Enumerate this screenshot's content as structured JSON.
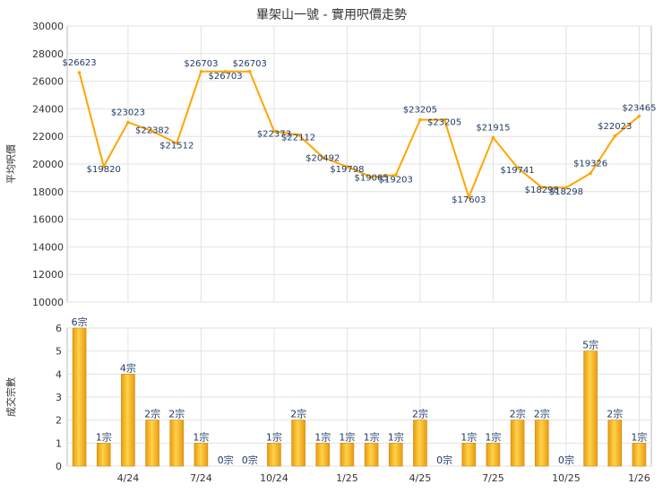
{
  "title": "畢架山一號 - 實用呎價走勢",
  "chart_data": [
    {
      "type": "line",
      "ylabel": "平均呎價",
      "ylim": [
        10000,
        30000
      ],
      "yticks": [
        10000,
        12000,
        14000,
        16000,
        18000,
        20000,
        22000,
        24000,
        26000,
        28000,
        30000
      ],
      "color": "#FFA500",
      "series": [
        {
          "values": [
            26623,
            19820,
            23023,
            22382,
            21512,
            26703,
            26703,
            26703,
            22373,
            22112,
            20492,
            19798,
            19065,
            19203,
            23205,
            23205,
            17603,
            21915,
            19741,
            18298,
            18298,
            19326,
            22023,
            23465
          ],
          "labels": [
            "$26623",
            "$19820",
            "$23023",
            "$22382",
            "$21512",
            "$26703",
            "$26703",
            "$26703",
            "$22373",
            "$22112",
            "$20492",
            "$19798",
            "$19065",
            "$19203",
            "$23205",
            "$23205",
            "$17603",
            "$21915",
            "$19741",
            "$18298",
            "$18298",
            "$19326",
            "$22023",
            "$23465"
          ]
        }
      ]
    },
    {
      "type": "bar",
      "ylabel": "成交宗數",
      "ylim": [
        0,
        6
      ],
      "yticks": [
        0,
        1,
        2,
        3,
        4,
        5,
        6
      ],
      "xtick_labels": [
        "4/24",
        "7/24",
        "10/24",
        "1/25",
        "4/25",
        "7/25",
        "10/25",
        "1/26"
      ],
      "values": [
        6,
        1,
        4,
        2,
        2,
        1,
        0,
        0,
        1,
        2,
        1,
        1,
        1,
        1,
        2,
        0,
        1,
        1,
        2,
        2,
        0,
        5,
        2,
        1
      ],
      "labels": [
        "6宗",
        "1宗",
        "4宗",
        "2宗",
        "2宗",
        "1宗",
        "0宗",
        "0宗",
        "1宗",
        "2宗",
        "1宗",
        "1宗",
        "1宗",
        "1宗",
        "2宗",
        "0宗",
        "1宗",
        "1宗",
        "2宗",
        "2宗",
        "0宗",
        "5宗",
        "2宗",
        "1宗"
      ]
    }
  ]
}
